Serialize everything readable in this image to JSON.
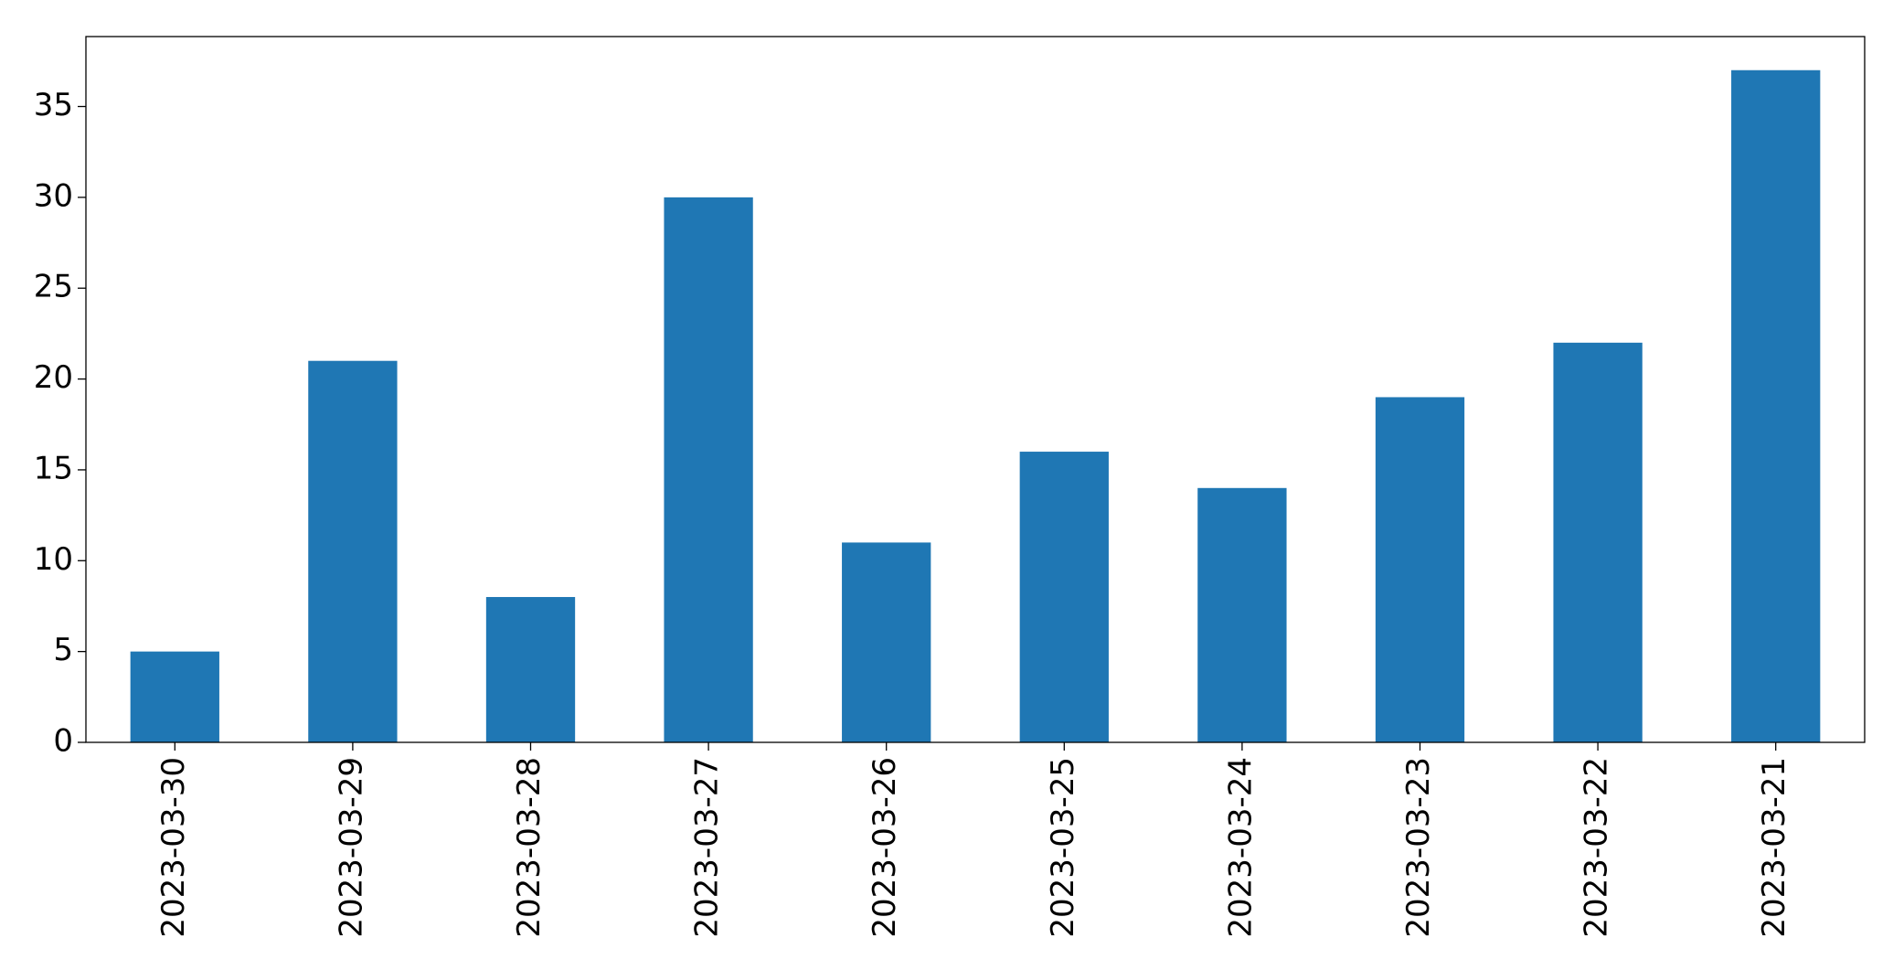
{
  "chart_data": {
    "type": "bar",
    "categories": [
      "2023-03-30",
      "2023-03-29",
      "2023-03-28",
      "2023-03-27",
      "2023-03-26",
      "2023-03-25",
      "2023-03-24",
      "2023-03-23",
      "2023-03-22",
      "2023-03-21"
    ],
    "values": [
      5,
      21,
      8,
      30,
      11,
      16,
      14,
      19,
      22,
      37
    ],
    "color": "#1f77b4",
    "ylim": [
      0,
      38.85
    ],
    "yticks": [
      0,
      5,
      10,
      15,
      20,
      25,
      30,
      35
    ],
    "grid": false
  }
}
